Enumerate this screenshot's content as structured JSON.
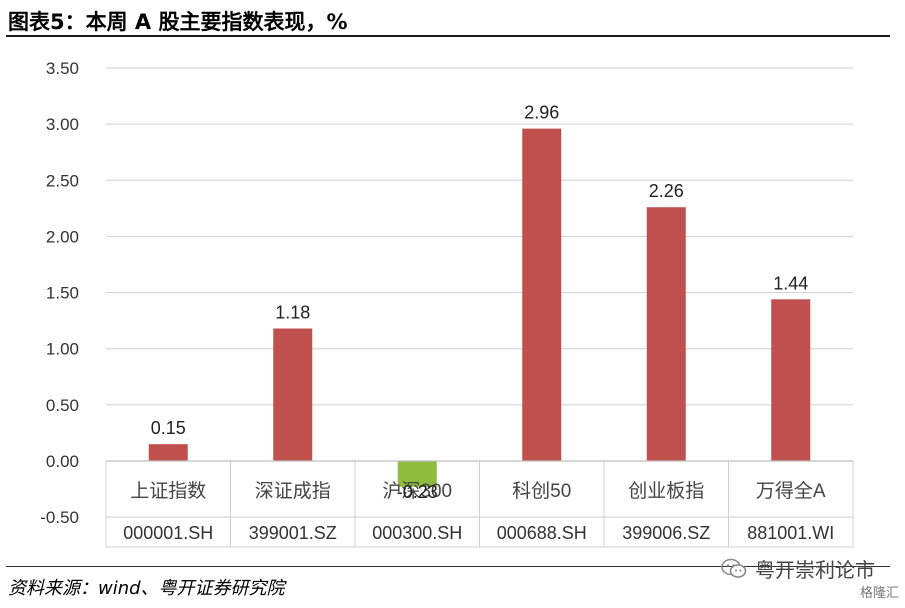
{
  "page": {
    "title": "图表5：本周 A 股主要指数表现，%",
    "source": "资料来源：wind、粤开证券研究院",
    "watermark": "粤开崇利论市",
    "watermark_sub": "格隆汇"
  },
  "chart_data": {
    "type": "bar",
    "title": "图表5：本周 A 股主要指数表现，%",
    "xlabel": "",
    "ylabel": "",
    "ylim": [
      -0.5,
      3.5
    ],
    "yticks": [
      "3.50",
      "3.00",
      "2.50",
      "2.00",
      "1.50",
      "1.00",
      "0.50",
      "0.00",
      "-0.50"
    ],
    "ytick_values": [
      3.5,
      3.0,
      2.5,
      2.0,
      1.5,
      1.0,
      0.5,
      0.0,
      -0.5
    ],
    "grid": true,
    "categories": [
      "上证指数",
      "深证成指",
      "沪深300",
      "科创50",
      "创业板指",
      "万得全A"
    ],
    "codes": [
      "000001.SH",
      "399001.SZ",
      "000300.SH",
      "000688.SH",
      "399006.SZ",
      "881001.WI"
    ],
    "values": [
      0.15,
      1.18,
      -0.23,
      2.96,
      2.26,
      1.44
    ],
    "value_labels": [
      "0.15",
      "1.18",
      "-0.23",
      "2.96",
      "2.26",
      "1.44"
    ],
    "colors": {
      "positive": "#c0504d",
      "negative": "#8fbc3c",
      "grid": "#d0d0d0"
    }
  }
}
